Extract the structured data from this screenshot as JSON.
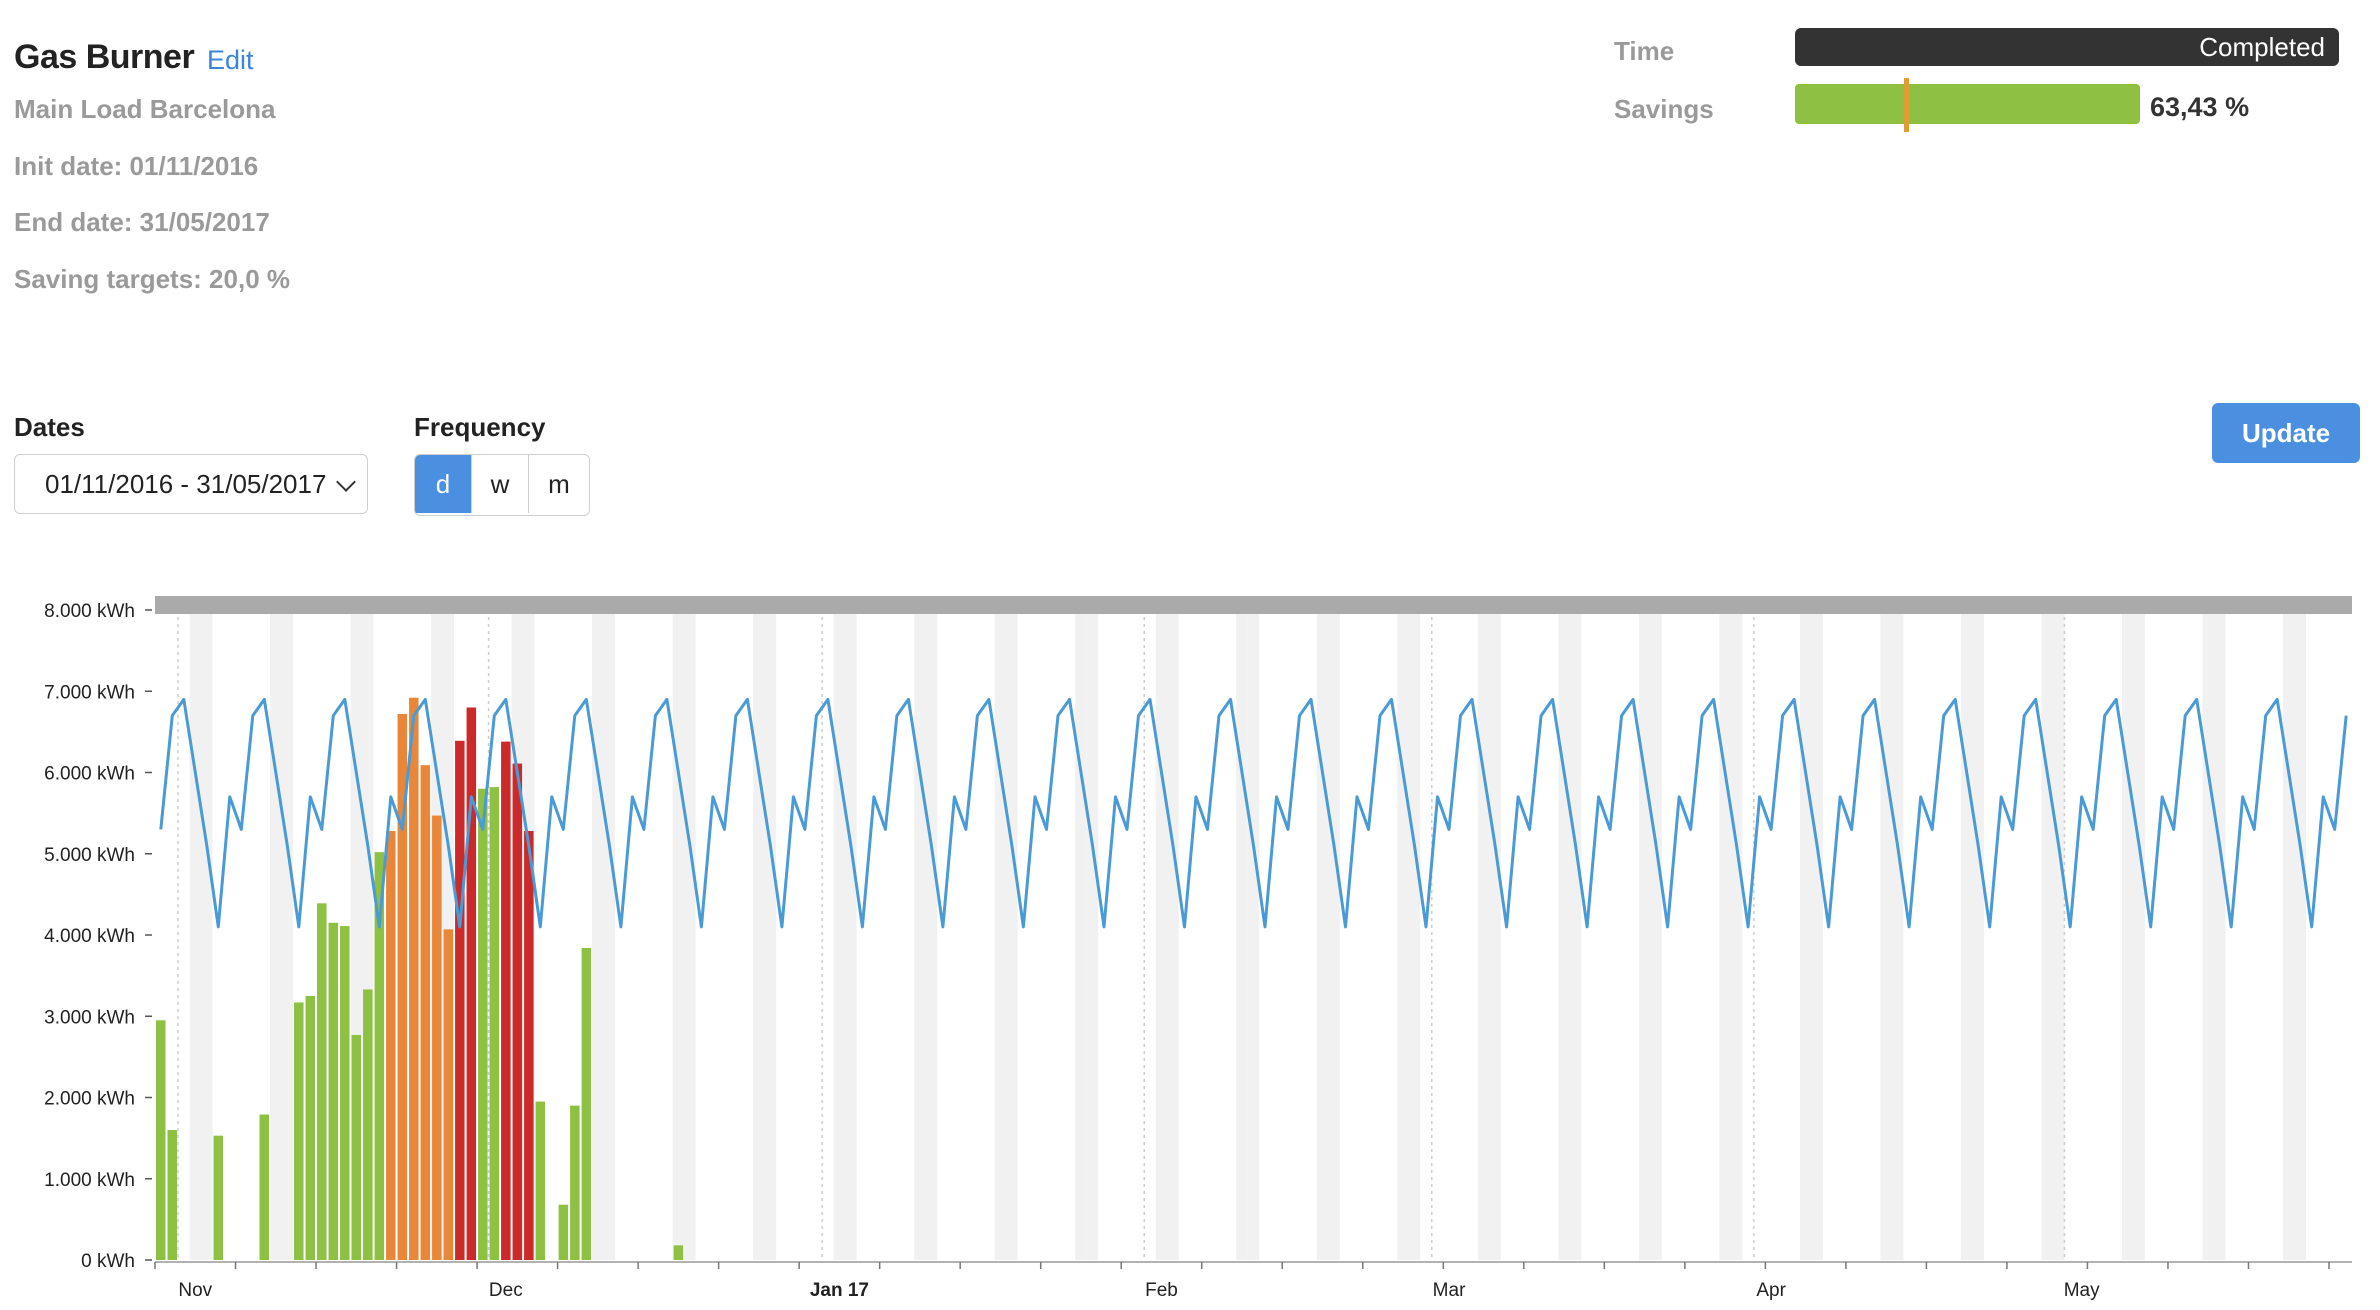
{
  "header": {
    "title": "Gas Burner",
    "edit_label": "Edit",
    "subtitle": "Main Load Barcelona",
    "init_date": "Init date: 01/11/2016",
    "end_date": "End date: 31/05/2017",
    "saving_targets": "Saving targets: 20,0 %"
  },
  "progress": {
    "time_label": "Time",
    "time_status": "Completed",
    "time_fraction": 1.0,
    "savings_label": "Savings",
    "savings_value": "63,43 %",
    "savings_fraction": 0.6343,
    "savings_target_fraction": 0.2
  },
  "controls": {
    "dates_label": "Dates",
    "dates_value": "01/11/2016 - 31/05/2017",
    "frequency_label": "Frequency",
    "frequency_options": [
      "d",
      "w",
      "m"
    ],
    "frequency_selected": "d",
    "update_label": "Update"
  },
  "colors": {
    "accent": "#4a8fe0",
    "bar_green": "#8dc043",
    "bar_orange": "#e8873a",
    "bar_red": "#cc2a2a",
    "line_blue": "#4a9ad6",
    "target_marker": "#e39b33"
  },
  "chart_data": {
    "type": "bar",
    "y_unit": "kWh",
    "ylim": [
      0,
      8000
    ],
    "y_ticks": [
      "0 kWh",
      "1.000 kWh",
      "2.000 kWh",
      "3.000 kWh",
      "4.000 kWh",
      "5.000 kWh",
      "6.000 kWh",
      "7.000 kWh",
      "8.000 kWh"
    ],
    "x_ticks": [
      "Nov",
      "Dec",
      "Jan 17",
      "Feb",
      "Mar",
      "Apr",
      "May"
    ],
    "x_tick_days": [
      2,
      29,
      58,
      86,
      111,
      139,
      166
    ],
    "total_days": 191,
    "bars": [
      {
        "day": 0,
        "value": 2950,
        "status": "green"
      },
      {
        "day": 1,
        "value": 1600,
        "status": "green"
      },
      {
        "day": 5,
        "value": 1530,
        "status": "green"
      },
      {
        "day": 9,
        "value": 1790,
        "status": "green"
      },
      {
        "day": 12,
        "value": 3170,
        "status": "green"
      },
      {
        "day": 13,
        "value": 3250,
        "status": "green"
      },
      {
        "day": 14,
        "value": 4390,
        "status": "green"
      },
      {
        "day": 15,
        "value": 4150,
        "status": "green"
      },
      {
        "day": 16,
        "value": 4110,
        "status": "green"
      },
      {
        "day": 17,
        "value": 2770,
        "status": "green"
      },
      {
        "day": 18,
        "value": 3330,
        "status": "green"
      },
      {
        "day": 19,
        "value": 5020,
        "status": "green"
      },
      {
        "day": 20,
        "value": 5280,
        "status": "orange"
      },
      {
        "day": 21,
        "value": 6720,
        "status": "orange"
      },
      {
        "day": 22,
        "value": 6920,
        "status": "orange"
      },
      {
        "day": 23,
        "value": 6090,
        "status": "orange"
      },
      {
        "day": 24,
        "value": 5470,
        "status": "orange"
      },
      {
        "day": 25,
        "value": 4070,
        "status": "orange"
      },
      {
        "day": 26,
        "value": 6390,
        "status": "red"
      },
      {
        "day": 27,
        "value": 6800,
        "status": "red"
      },
      {
        "day": 28,
        "value": 5800,
        "status": "green"
      },
      {
        "day": 29,
        "value": 5820,
        "status": "green"
      },
      {
        "day": 30,
        "value": 6380,
        "status": "red"
      },
      {
        "day": 31,
        "value": 6110,
        "status": "red"
      },
      {
        "day": 32,
        "value": 5280,
        "status": "red"
      },
      {
        "day": 33,
        "value": 1950,
        "status": "green"
      },
      {
        "day": 35,
        "value": 680,
        "status": "green"
      },
      {
        "day": 36,
        "value": 1900,
        "status": "green"
      },
      {
        "day": 37,
        "value": 3840,
        "status": "green"
      },
      {
        "day": 45,
        "value": 180,
        "status": "green"
      }
    ],
    "baseline_series": {
      "name": "",
      "weekly_pattern": [
        5300,
        6700,
        6900,
        6000,
        5100,
        4100,
        5700
      ]
    }
  }
}
